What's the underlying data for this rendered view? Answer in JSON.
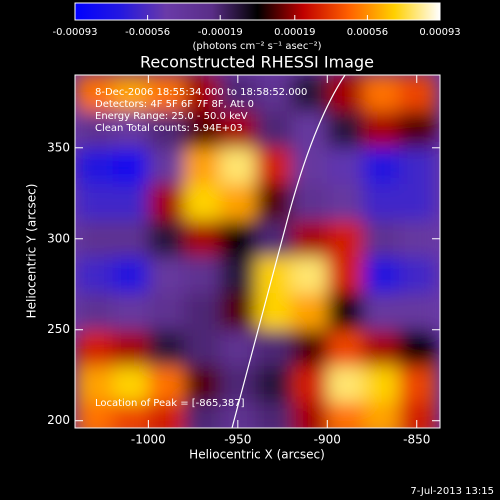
{
  "chart_data": {
    "type": "heatmap",
    "title": "Reconstructed RHESSI Image",
    "colorbar_label": "(photons cm⁻² s⁻¹ asec⁻²)",
    "clim": [
      -0.00093,
      0.00093
    ],
    "cticks": [
      -0.00093,
      -0.00056,
      -0.00019,
      0.00019,
      0.00056,
      0.00093
    ],
    "colorscale": [
      "#0000ff",
      "#2418e0",
      "#6a3aa8",
      "#5a2e88",
      "#000000",
      "#c00000",
      "#ff6000",
      "#ffd000",
      "#ffffff"
    ],
    "annotations": [
      "8-Dec-2006 18:55:34.000 to 18:58:52.000",
      "Detectors: 4F 5F 6F 7F 8F, Att 0",
      "Energy Range: 25.0 - 50.0 keV",
      "Clean    Total counts: 5.94E+03"
    ],
    "peak_label": "Location of Peak = [-865,387]",
    "xlabel": "Heliocentric X (arcsec)",
    "ylabel": "Heliocentric Y (arcsec)",
    "timestamp": "7-Jul-2013 13:15",
    "xlim": [
      -1041,
      -837
    ],
    "xticks": [
      -1000,
      -950,
      -900,
      -850
    ],
    "ylim": [
      196,
      390
    ],
    "yticks": [
      200,
      250,
      300,
      350
    ],
    "x": [
      -1030,
      -1010,
      -990,
      -970,
      -950,
      -930,
      -910,
      -890,
      -870,
      -850
    ],
    "y": [
      380,
      360,
      340,
      320,
      300,
      280,
      260,
      240,
      220,
      200
    ],
    "z": [
      [
        0.0005,
        0.0006,
        0.0005,
        0.0002,
        -0.0002,
        -0.0003,
        -0.0001,
        0.0002,
        0.0005,
        0.0004
      ],
      [
        -0.0003,
        -0.0004,
        -0.0002,
        0.0001,
        0.0002,
        -0.0002,
        -0.0004,
        -0.0001,
        0.0002,
        0.0001
      ],
      [
        -0.0007,
        -0.0008,
        -0.0004,
        0.0006,
        0.0008,
        0.0003,
        -0.0004,
        -0.0005,
        -0.0007,
        -0.0006
      ],
      [
        -0.0006,
        -0.0006,
        0.0002,
        0.0007,
        0.0006,
        0.0001,
        -0.0003,
        -0.0004,
        -0.0006,
        -0.0006
      ],
      [
        -0.0003,
        -0.0003,
        -0.0001,
        0.0002,
        0.0,
        -0.0002,
        0.0002,
        0.0003,
        -0.0003,
        -0.0004
      ],
      [
        -0.0006,
        -0.0007,
        -0.0004,
        -0.0003,
        -0.0001,
        0.0007,
        0.0008,
        0.0003,
        -0.0007,
        -0.0006
      ],
      [
        -0.0003,
        -0.0004,
        -0.0003,
        -0.0002,
        0.0001,
        0.0007,
        0.0006,
        0.0,
        -0.0004,
        -0.0004
      ],
      [
        0.0003,
        0.0002,
        -0.0001,
        -0.0002,
        -0.0003,
        -0.0002,
        0.0001,
        0.0004,
        0.0002,
        0.0
      ],
      [
        0.0006,
        0.0007,
        0.0005,
        0.0001,
        -0.0002,
        -0.0001,
        0.0003,
        0.0008,
        0.0007,
        0.0004
      ],
      [
        0.0005,
        0.0004,
        0.0003,
        -0.0002,
        -0.0003,
        -0.0002,
        0.0002,
        0.0005,
        0.0006,
        0.0003
      ]
    ]
  }
}
